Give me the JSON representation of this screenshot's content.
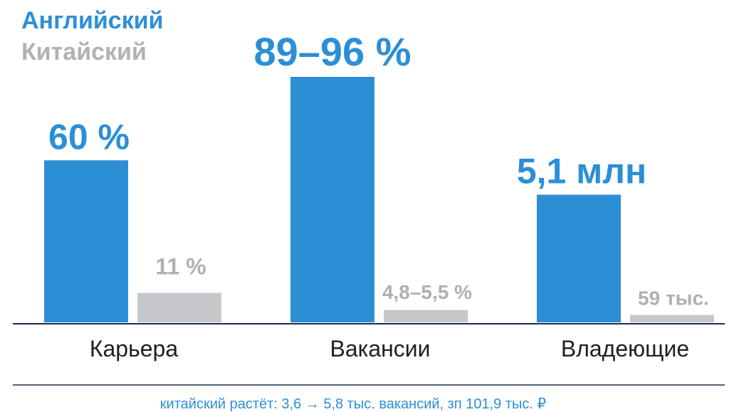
{
  "colors": {
    "primary": "#2c8fd6",
    "secondary": "#c6c7ca",
    "secondary_label": "#aeb0b4",
    "axis": "#1c2a4a",
    "footnote": "#2c8fd6",
    "category_text": "#1f1f1f"
  },
  "legend": {
    "items": [
      {
        "label": "Английский",
        "color": "#2c8fd6"
      },
      {
        "label": "Китайский",
        "color": "#b0b1b4"
      }
    ]
  },
  "chart_data": {
    "type": "bar",
    "categories": [
      "Карьера",
      "Вакансии",
      "Владеющие"
    ],
    "series": [
      {
        "name": "Английский",
        "value_labels": [
          "60 %",
          "89–96 %",
          "5,1 млн"
        ],
        "relative_heights": [
          0.66,
          1.0,
          0.52
        ]
      },
      {
        "name": "Китайский",
        "value_labels": [
          "11 %",
          "4,8–5,5 %",
          "59 тыс."
        ],
        "relative_heights": [
          0.12,
          0.05,
          0.03
        ]
      }
    ],
    "legend_position": "top-left",
    "grid": false,
    "xlabel": "",
    "ylabel": ""
  },
  "footnote": "китайский растёт: 3,6 → 5,8 тыс. вакансий, зп 101,9 тыс. ₽"
}
